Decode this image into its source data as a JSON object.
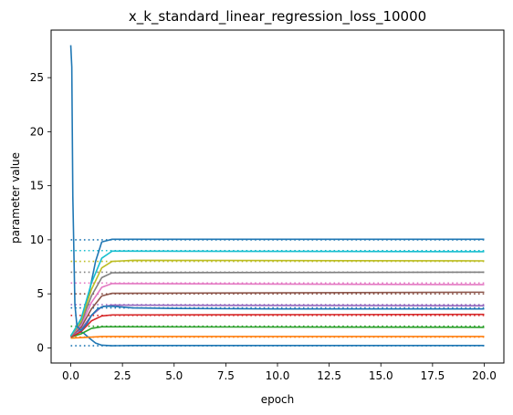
{
  "chart_data": {
    "type": "line",
    "title": "x_k_standard_linear_regression_loss_10000",
    "xlabel": "epoch",
    "ylabel": "parameter value",
    "xlim": [
      -0.95,
      20.95
    ],
    "ylim": [
      -1.4,
      29.4
    ],
    "xticks": [
      0.0,
      2.5,
      5.0,
      7.5,
      10.0,
      12.5,
      15.0,
      17.5,
      20.0
    ],
    "xtick_labels": [
      "0.0",
      "2.5",
      "5.0",
      "7.5",
      "10.0",
      "12.5",
      "15.0",
      "17.5",
      "20.0"
    ],
    "yticks": [
      0,
      5,
      10,
      15,
      20,
      25
    ],
    "ytick_labels": [
      "0",
      "5",
      "10",
      "15",
      "20",
      "25"
    ],
    "grid": false,
    "series": [
      {
        "color": "#1f77b4",
        "target": 3.7,
        "points": [
          [
            0,
            28
          ],
          [
            0.05,
            26
          ],
          [
            0.1,
            14
          ],
          [
            0.2,
            4
          ],
          [
            0.3,
            2
          ],
          [
            0.5,
            1.6
          ],
          [
            0.8,
            2.3
          ],
          [
            1.0,
            3.0
          ],
          [
            1.3,
            3.6
          ],
          [
            1.6,
            3.85
          ],
          [
            2.0,
            3.85
          ],
          [
            3.0,
            3.7
          ],
          [
            5.0,
            3.65
          ],
          [
            10.0,
            3.6
          ],
          [
            20.0,
            3.6
          ]
        ]
      },
      {
        "color": "#1f77b4",
        "target": 0.2,
        "points": [
          [
            0,
            1.0
          ],
          [
            0.3,
            1.6
          ],
          [
            0.6,
            1.4
          ],
          [
            0.9,
            0.9
          ],
          [
            1.2,
            0.45
          ],
          [
            1.5,
            0.25
          ],
          [
            2.0,
            0.2
          ],
          [
            3.0,
            0.22
          ],
          [
            20.0,
            0.22
          ]
        ]
      },
      {
        "color": "#1f77b4",
        "target": 10.0,
        "points": [
          [
            0,
            1.1
          ],
          [
            0.3,
            1.5
          ],
          [
            0.6,
            2.6
          ],
          [
            0.9,
            5.2
          ],
          [
            1.2,
            8.0
          ],
          [
            1.5,
            9.8
          ],
          [
            2.0,
            10.05
          ],
          [
            3.0,
            10.05
          ],
          [
            20.0,
            10.05
          ]
        ]
      },
      {
        "color": "#ff7f0e",
        "target": 1.0,
        "points": [
          [
            0,
            0.9
          ],
          [
            0.5,
            0.95
          ],
          [
            1.0,
            1.0
          ],
          [
            1.5,
            1.05
          ],
          [
            2.0,
            1.05
          ],
          [
            20.0,
            1.05
          ]
        ]
      },
      {
        "color": "#2ca02c",
        "target": 2.0,
        "points": [
          [
            0,
            1.0
          ],
          [
            0.5,
            1.3
          ],
          [
            1.0,
            1.8
          ],
          [
            1.5,
            1.95
          ],
          [
            2.0,
            1.95
          ],
          [
            20.0,
            1.9
          ]
        ]
      },
      {
        "color": "#d62728",
        "target": 3.0,
        "points": [
          [
            0,
            1.0
          ],
          [
            0.5,
            1.5
          ],
          [
            1.0,
            2.5
          ],
          [
            1.5,
            2.95
          ],
          [
            2.0,
            3.05
          ],
          [
            20.0,
            3.1
          ]
        ]
      },
      {
        "color": "#9467bd",
        "target": 4.0,
        "points": [
          [
            0,
            1.1
          ],
          [
            0.5,
            1.7
          ],
          [
            1.0,
            3.0
          ],
          [
            1.5,
            3.8
          ],
          [
            2.0,
            3.95
          ],
          [
            20.0,
            3.9
          ]
        ]
      },
      {
        "color": "#8c564b",
        "target": 5.0,
        "points": [
          [
            0,
            1.1
          ],
          [
            0.5,
            1.9
          ],
          [
            1.0,
            3.6
          ],
          [
            1.5,
            4.8
          ],
          [
            2.0,
            5.05
          ],
          [
            20.0,
            5.15
          ]
        ]
      },
      {
        "color": "#e377c2",
        "target": 6.0,
        "points": [
          [
            0,
            1.1
          ],
          [
            0.5,
            2.1
          ],
          [
            1.0,
            4.2
          ],
          [
            1.5,
            5.6
          ],
          [
            2.0,
            5.95
          ],
          [
            20.0,
            5.85
          ]
        ]
      },
      {
        "color": "#7f7f7f",
        "target": 7.0,
        "points": [
          [
            0,
            1.1
          ],
          [
            0.5,
            2.3
          ],
          [
            1.0,
            4.8
          ],
          [
            1.5,
            6.5
          ],
          [
            2.0,
            6.95
          ],
          [
            20.0,
            7.0
          ]
        ]
      },
      {
        "color": "#bcbd22",
        "target": 8.0,
        "points": [
          [
            0,
            1.1
          ],
          [
            0.5,
            2.5
          ],
          [
            1.0,
            5.4
          ],
          [
            1.5,
            7.4
          ],
          [
            2.0,
            8.0
          ],
          [
            3.0,
            8.1
          ],
          [
            20.0,
            8.05
          ]
        ]
      },
      {
        "color": "#17becf",
        "target": 9.0,
        "points": [
          [
            0,
            1.1
          ],
          [
            0.5,
            2.7
          ],
          [
            1.0,
            6.0
          ],
          [
            1.5,
            8.3
          ],
          [
            2.0,
            8.95
          ],
          [
            20.0,
            8.9
          ]
        ]
      }
    ]
  }
}
